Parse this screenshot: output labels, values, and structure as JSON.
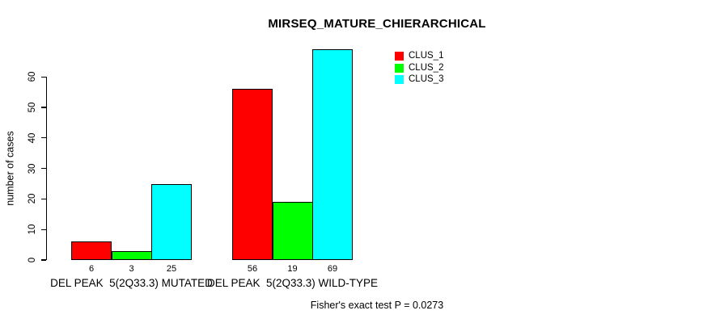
{
  "chart_data": {
    "type": "bar",
    "title": "MIRSEQ_MATURE_CHIERARCHICAL",
    "xlabel": "",
    "ylabel": "number of cases",
    "ylim": [
      0,
      60
    ],
    "yticks": [
      0,
      10,
      20,
      30,
      40,
      50,
      60
    ],
    "categories": [
      "DEL PEAK  5(2Q33.3) MUTATED",
      "DEL PEAK  5(2Q33.3) WILD-TYPE"
    ],
    "series": [
      {
        "name": "CLUS_1",
        "color": "#ff0000",
        "values": [
          6,
          56
        ]
      },
      {
        "name": "CLUS_2",
        "color": "#00ff00",
        "values": [
          3,
          19
        ]
      },
      {
        "name": "CLUS_3",
        "color": "#00ffff",
        "values": [
          25,
          69
        ]
      }
    ],
    "bar_value_labels": [
      [
        "6",
        "3",
        "25"
      ],
      [
        "56",
        "19",
        "69"
      ]
    ],
    "legend_position": "top-right",
    "grid": false,
    "annotation": "Fisher's exact test P = 0.0273"
  },
  "colors": {
    "background": "#ffffff",
    "axis": "#000000",
    "text": "#000000"
  }
}
